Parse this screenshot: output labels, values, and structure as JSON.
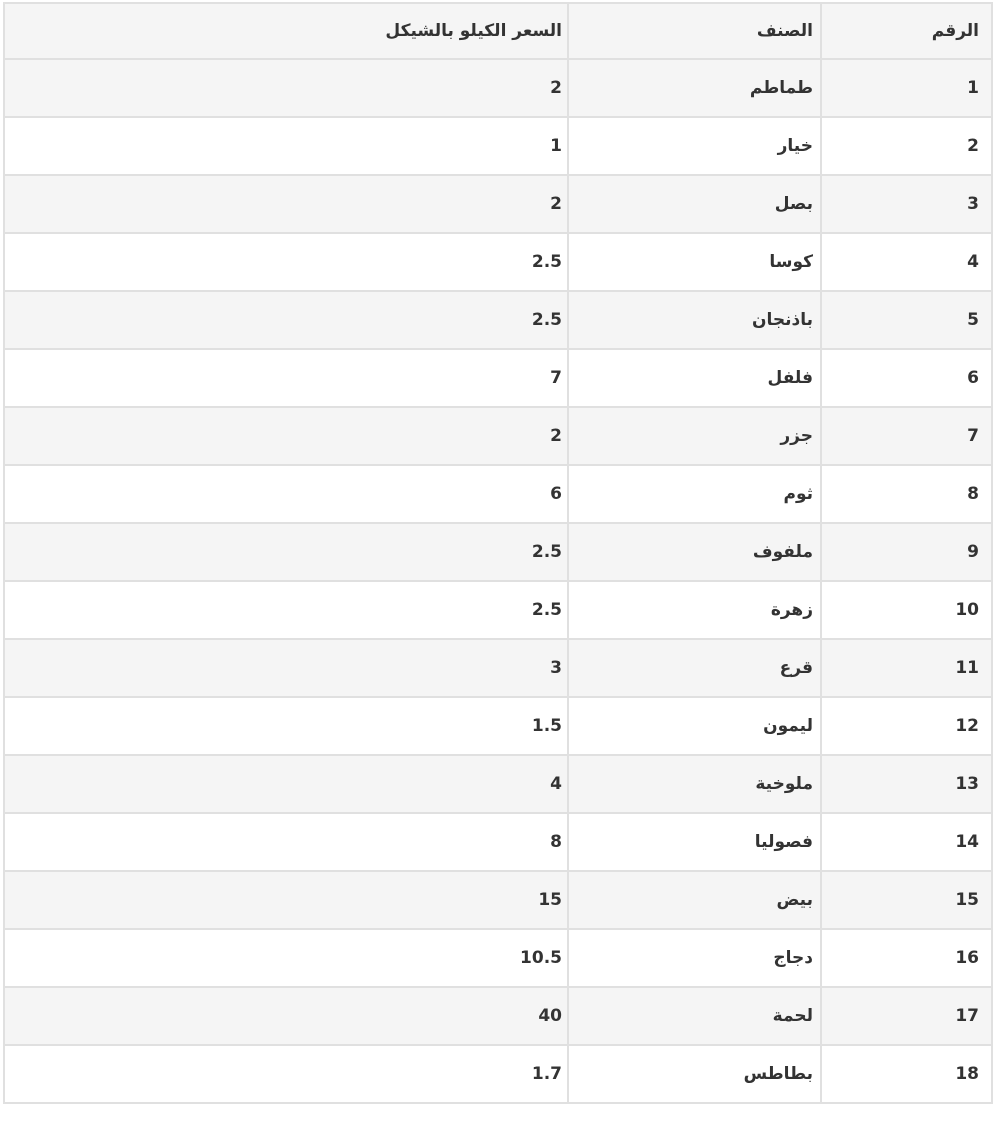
{
  "table": {
    "direction": "rtl",
    "columns": [
      {
        "key": "number",
        "label": "الرقم"
      },
      {
        "key": "item",
        "label": "الصنف"
      },
      {
        "key": "price",
        "label": "السعر الكيلو بالشيكل"
      }
    ],
    "rows": [
      {
        "number": "1",
        "item": "طماطم",
        "price": "2"
      },
      {
        "number": "2",
        "item": "خيار",
        "price": "1"
      },
      {
        "number": "3",
        "item": "بصل",
        "price": "2"
      },
      {
        "number": "4",
        "item": "كوسا",
        "price": "2.5"
      },
      {
        "number": "5",
        "item": "باذنجان",
        "price": "2.5"
      },
      {
        "number": "6",
        "item": "فلفل",
        "price": "7"
      },
      {
        "number": "7",
        "item": "جزر",
        "price": "2"
      },
      {
        "number": "8",
        "item": "ثوم",
        "price": "6"
      },
      {
        "number": "9",
        "item": "ملفوف",
        "price": "2.5"
      },
      {
        "number": "10",
        "item": "زهرة",
        "price": "2.5"
      },
      {
        "number": "11",
        "item": "قرع",
        "price": "3"
      },
      {
        "number": "12",
        "item": "ليمون",
        "price": "1.5"
      },
      {
        "number": "13",
        "item": "ملوخية",
        "price": "4"
      },
      {
        "number": "14",
        "item": "فصوليا",
        "price": "8"
      },
      {
        "number": "15",
        "item": "بيض",
        "price": "15"
      },
      {
        "number": "16",
        "item": "دجاج",
        "price": "10.5"
      },
      {
        "number": "17",
        "item": "لحمة",
        "price": "40"
      },
      {
        "number": "18",
        "item": "بطاطس",
        "price": "1.7"
      }
    ]
  },
  "colors": {
    "stripe": "#f5f5f5",
    "row_alt": "#ffffff",
    "border": "#e0e0e0",
    "text": "#333333",
    "background": "#ffffff"
  },
  "chart_data": {
    "type": "table",
    "title": "",
    "headers": [
      "الرقم",
      "الصنف",
      "السعر الكيلو بالشيكل"
    ],
    "categories": [
      "طماطم",
      "خيار",
      "بصل",
      "كوسا",
      "باذنجان",
      "فلفل",
      "جزر",
      "ثوم",
      "ملفوف",
      "زهرة",
      "قرع",
      "ليمون",
      "ملوخية",
      "فصوليا",
      "بيض",
      "دجاج",
      "لحمة",
      "بطاطس"
    ],
    "values": [
      2,
      1,
      2,
      2.5,
      2.5,
      7,
      2,
      6,
      2.5,
      2.5,
      3,
      1.5,
      4,
      8,
      15,
      10.5,
      40,
      1.7
    ]
  }
}
